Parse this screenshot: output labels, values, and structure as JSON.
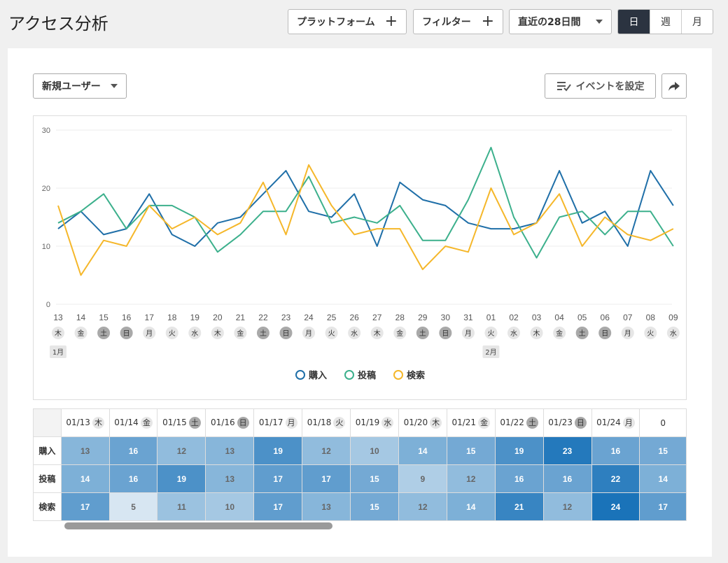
{
  "header": {
    "title": "アクセス分析",
    "platform_label": "プラットフォーム",
    "filter_label": "フィルター",
    "range_label": "直近の28日間",
    "periods": [
      "日",
      "週",
      "月"
    ],
    "active_period": "日"
  },
  "controls": {
    "metric_select": "新規ユーザー",
    "event_button": "イベントを設定"
  },
  "chart_data": {
    "type": "line",
    "x": [
      "13",
      "14",
      "15",
      "16",
      "17",
      "18",
      "19",
      "20",
      "21",
      "22",
      "23",
      "24",
      "25",
      "26",
      "27",
      "28",
      "29",
      "30",
      "31",
      "01",
      "02",
      "03",
      "04",
      "05",
      "06",
      "07",
      "08",
      "09"
    ],
    "weekdays": [
      "木",
      "金",
      "土",
      "日",
      "月",
      "火",
      "水",
      "木",
      "金",
      "土",
      "日",
      "月",
      "火",
      "水",
      "木",
      "金",
      "土",
      "日",
      "月",
      "火",
      "水",
      "木",
      "金",
      "土",
      "日",
      "月",
      "火",
      "水"
    ],
    "weekend_flags": [
      0,
      0,
      1,
      1,
      0,
      0,
      0,
      0,
      0,
      1,
      1,
      0,
      0,
      0,
      0,
      0,
      1,
      1,
      0,
      0,
      0,
      0,
      0,
      1,
      1,
      0,
      0,
      0
    ],
    "month_labels": [
      {
        "index": 0,
        "text": "1月"
      },
      {
        "index": 19,
        "text": "2月"
      }
    ],
    "ylim": [
      0,
      30
    ],
    "yticks": [
      0,
      10,
      20,
      30
    ],
    "grid": true,
    "legend_position": "bottom",
    "series": [
      {
        "name": "購入",
        "color": "#1f6fa8",
        "values": [
          13,
          16,
          12,
          13,
          19,
          12,
          10,
          14,
          15,
          19,
          23,
          16,
          15,
          19,
          10,
          21,
          18,
          17,
          14,
          13,
          13,
          14,
          23,
          14,
          16,
          10,
          23,
          17
        ]
      },
      {
        "name": "投稿",
        "color": "#3cb08c",
        "values": [
          14,
          16,
          19,
          13,
          17,
          17,
          15,
          9,
          12,
          16,
          16,
          22,
          14,
          15,
          14,
          17,
          11,
          11,
          18,
          27,
          15,
          8,
          15,
          16,
          12,
          16,
          16,
          10
        ]
      },
      {
        "name": "検索",
        "color": "#f5b72a",
        "values": [
          17,
          5,
          11,
          10,
          17,
          13,
          15,
          12,
          14,
          21,
          12,
          24,
          17,
          12,
          13,
          13,
          6,
          10,
          9,
          20,
          12,
          14,
          19,
          10,
          15,
          12,
          11,
          13
        ]
      }
    ]
  },
  "table": {
    "columns": [
      {
        "date": "01/13",
        "dow": "木",
        "weekend": false
      },
      {
        "date": "01/14",
        "dow": "金",
        "weekend": false
      },
      {
        "date": "01/15",
        "dow": "土",
        "weekend": true
      },
      {
        "date": "01/16",
        "dow": "日",
        "weekend": true
      },
      {
        "date": "01/17",
        "dow": "月",
        "weekend": false
      },
      {
        "date": "01/18",
        "dow": "火",
        "weekend": false
      },
      {
        "date": "01/19",
        "dow": "水",
        "weekend": false
      },
      {
        "date": "01/20",
        "dow": "木",
        "weekend": false
      },
      {
        "date": "01/21",
        "dow": "金",
        "weekend": false
      },
      {
        "date": "01/22",
        "dow": "土",
        "weekend": true
      },
      {
        "date": "01/23",
        "dow": "日",
        "weekend": true
      },
      {
        "date": "01/24",
        "dow": "月",
        "weekend": false
      },
      {
        "date": "0",
        "dow": "",
        "weekend": false
      }
    ],
    "rows": [
      {
        "label": "購入",
        "values": [
          13,
          16,
          12,
          13,
          19,
          12,
          10,
          14,
          15,
          19,
          23,
          16,
          15
        ]
      },
      {
        "label": "投稿",
        "values": [
          14,
          16,
          19,
          13,
          17,
          17,
          15,
          9,
          12,
          16,
          16,
          22,
          14
        ]
      },
      {
        "label": "検索",
        "values": [
          17,
          5,
          11,
          10,
          17,
          13,
          15,
          12,
          14,
          21,
          12,
          24,
          17
        ]
      }
    ]
  }
}
